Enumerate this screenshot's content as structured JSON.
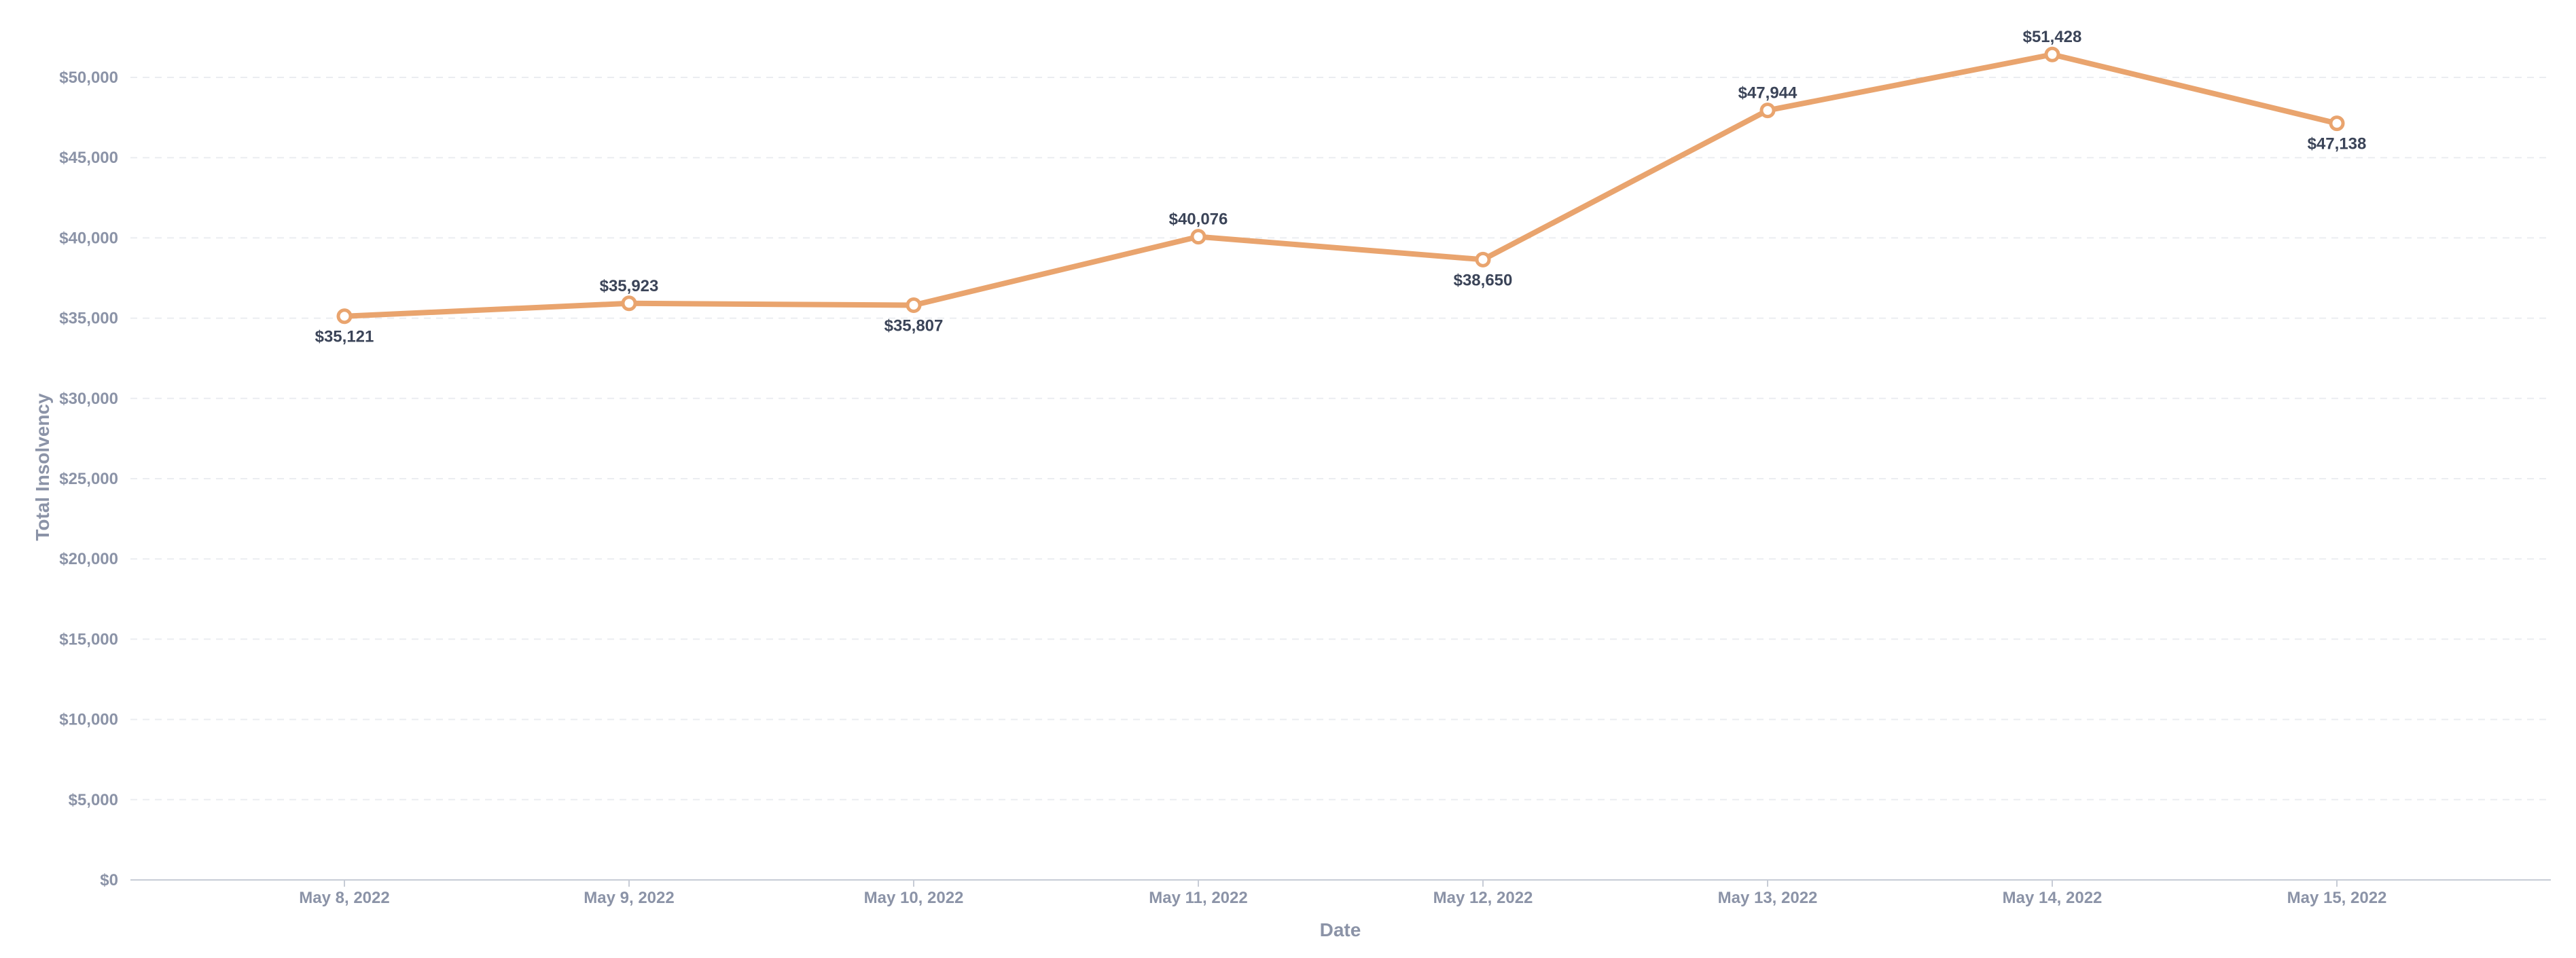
{
  "chart_data": {
    "type": "line",
    "title": "",
    "xlabel": "Date",
    "ylabel": "Total Insolvency",
    "categories": [
      "May 8, 2022",
      "May 9, 2022",
      "May 10, 2022",
      "May 11, 2022",
      "May 12, 2022",
      "May 13, 2022",
      "May 14, 2022",
      "May 15, 2022"
    ],
    "series": [
      {
        "values": [
          35121,
          35923,
          35807,
          40076,
          38650,
          47944,
          51428,
          47138
        ],
        "labels": [
          "$35,121",
          "$35,923",
          "$35,807",
          "$40,076",
          "$38,650",
          "$47,944",
          "$51,428",
          "$47,138"
        ],
        "label_positions": [
          "below",
          "above",
          "below",
          "above",
          "below",
          "above",
          "above",
          "below"
        ],
        "color": "#e9a46e"
      }
    ],
    "ylim": [
      0,
      50000
    ],
    "yticks": [
      0,
      5000,
      10000,
      15000,
      20000,
      25000,
      30000,
      35000,
      40000,
      45000,
      50000
    ],
    "ytick_labels": [
      "$0",
      "$5,000",
      "$10,000",
      "$15,000",
      "$20,000",
      "$25,000",
      "$30,000",
      "$35,000",
      "$40,000",
      "$45,000",
      "$50,000"
    ],
    "grid": true,
    "legend": "none"
  }
}
